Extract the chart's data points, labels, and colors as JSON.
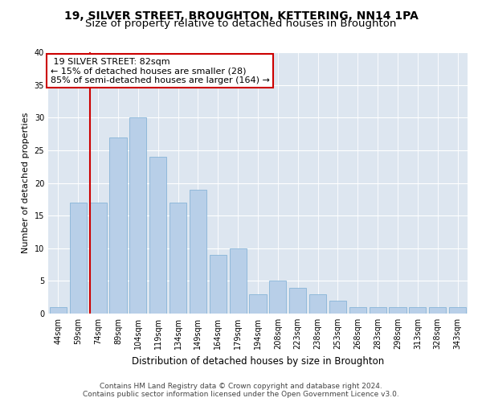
{
  "title": "19, SILVER STREET, BROUGHTON, KETTERING, NN14 1PA",
  "subtitle": "Size of property relative to detached houses in Broughton",
  "xlabel": "Distribution of detached houses by size in Broughton",
  "ylabel": "Number of detached properties",
  "categories": [
    "44sqm",
    "59sqm",
    "74sqm",
    "89sqm",
    "104sqm",
    "119sqm",
    "134sqm",
    "149sqm",
    "164sqm",
    "179sqm",
    "194sqm",
    "208sqm",
    "223sqm",
    "238sqm",
    "253sqm",
    "268sqm",
    "283sqm",
    "298sqm",
    "313sqm",
    "328sqm",
    "343sqm"
  ],
  "values": [
    1,
    17,
    17,
    27,
    30,
    24,
    17,
    19,
    9,
    10,
    3,
    5,
    4,
    3,
    2,
    1,
    1,
    1,
    1,
    1,
    1
  ],
  "bar_color": "#b8cfe8",
  "bar_edge_color": "#7aadd4",
  "red_line_x": 1.6,
  "property_sqm": 82,
  "pct_smaller": 15,
  "n_smaller": 28,
  "pct_larger_semi": 85,
  "n_larger_semi": 164,
  "annotation_box_color": "#ffffff",
  "annotation_box_edge": "#cc0000",
  "red_line_color": "#cc0000",
  "background_color": "#dde6f0",
  "ylim": [
    0,
    40
  ],
  "yticks": [
    0,
    5,
    10,
    15,
    20,
    25,
    30,
    35,
    40
  ],
  "footer_line1": "Contains HM Land Registry data © Crown copyright and database right 2024.",
  "footer_line2": "Contains public sector information licensed under the Open Government Licence v3.0.",
  "title_fontsize": 10,
  "subtitle_fontsize": 9.5,
  "xlabel_fontsize": 8.5,
  "ylabel_fontsize": 8,
  "tick_fontsize": 7,
  "annotation_fontsize": 8,
  "footer_fontsize": 6.5
}
